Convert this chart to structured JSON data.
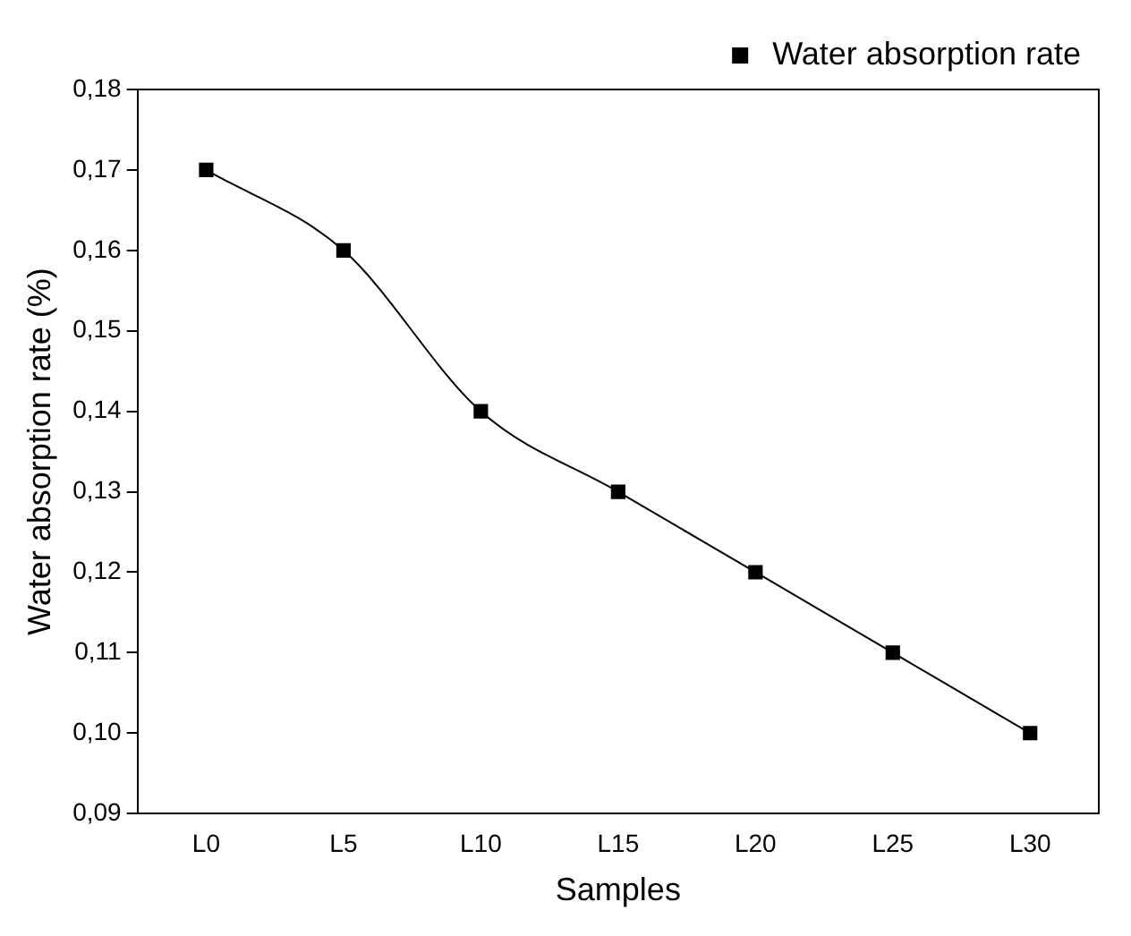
{
  "chart_data": {
    "type": "line",
    "xlabel": "Samples",
    "ylabel": "Water absorption rate (%)",
    "categories": [
      "L0",
      "L5",
      "L10",
      "L15",
      "L20",
      "L25",
      "L30"
    ],
    "series": [
      {
        "name": "Water absorption rate",
        "color": "#000000",
        "values": [
          0.17,
          0.16,
          0.14,
          0.13,
          0.12,
          0.11,
          0.1
        ]
      }
    ],
    "ylim": [
      0.09,
      0.18
    ],
    "yticks": [
      {
        "value": 0.09,
        "label": "0,09"
      },
      {
        "value": 0.1,
        "label": "0,10"
      },
      {
        "value": 0.11,
        "label": "0,11"
      },
      {
        "value": 0.12,
        "label": "0,12"
      },
      {
        "value": 0.13,
        "label": "0,13"
      },
      {
        "value": 0.14,
        "label": "0,14"
      },
      {
        "value": 0.15,
        "label": "0,15"
      },
      {
        "value": 0.16,
        "label": "0,16"
      },
      {
        "value": 0.17,
        "label": "0,17"
      },
      {
        "value": 0.18,
        "label": "0,18"
      }
    ],
    "grid": false,
    "legend": "top right",
    "marker": "square",
    "line_style": "solid"
  }
}
